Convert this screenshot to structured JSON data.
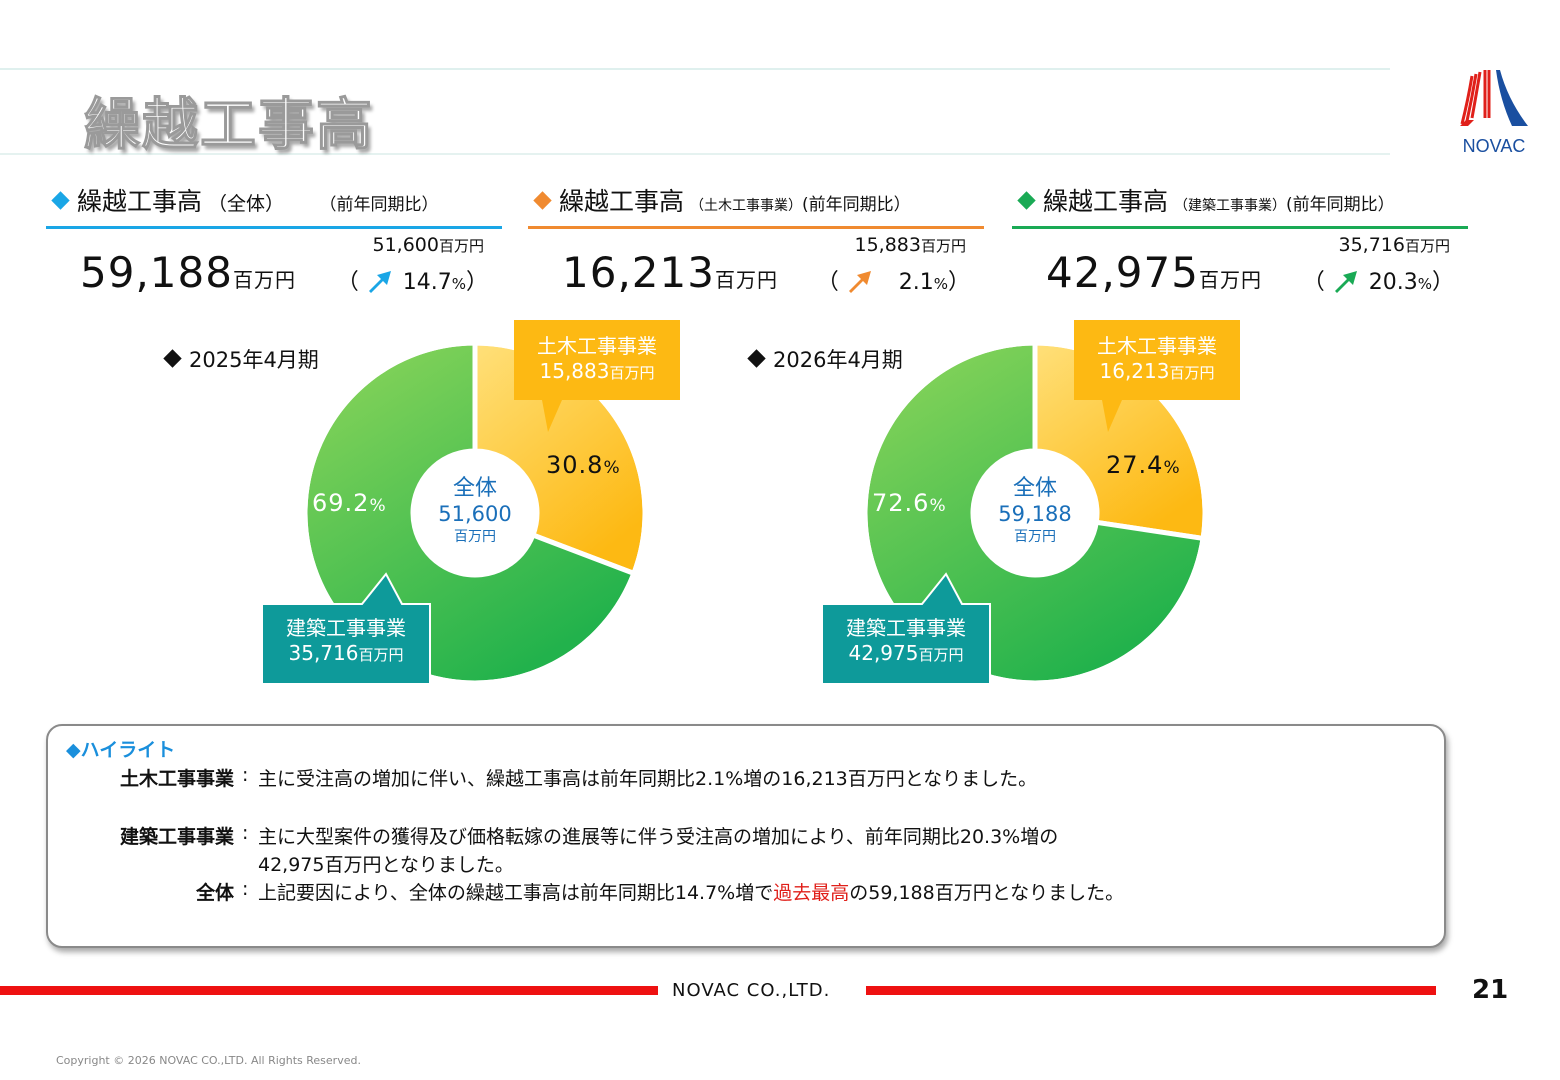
{
  "header": {
    "title": "繰越工事高"
  },
  "logo": {
    "text": "NOVAC",
    "colors": [
      "#e0201a",
      "#1a4fa0"
    ]
  },
  "panels": [
    {
      "id": "total",
      "title": "繰越工事高",
      "subtitle": "（全体）",
      "compare_label": "（前年同期比）",
      "accent": "#1aa6e6",
      "value": "59,188",
      "unit": "百万円",
      "prev_value": "51,600",
      "prev_unit": "百万円",
      "growth_open": "（",
      "growth": "14.7",
      "growth_unit": "%",
      "growth_close": "）",
      "arrow_color": "#1aa6e6"
    },
    {
      "id": "civil",
      "title": "繰越工事高",
      "subtitle": "（土木工事事業）",
      "compare_label": "(前年同期比）",
      "accent": "#f08a30",
      "value": "16,213",
      "unit": "百万円",
      "prev_value": "15,883",
      "prev_unit": "百万円",
      "growth_open": "（",
      "growth": "2.1",
      "growth_unit": "%",
      "growth_close": "）",
      "arrow_color": "#f08a30"
    },
    {
      "id": "building",
      "title": "繰越工事高",
      "subtitle": "（建築工事事業）",
      "compare_label": "(前年同期比）",
      "accent": "#1aaa55",
      "value": "42,975",
      "unit": "百万円",
      "prev_value": "35,716",
      "prev_unit": "百万円",
      "growth_open": "（",
      "growth": "20.3",
      "growth_unit": "%",
      "growth_close": "）",
      "arrow_color": "#1aaa55"
    }
  ],
  "chart_data": [
    {
      "type": "pie",
      "title": "2025年4月期",
      "center_label": "全体",
      "center_value": "51,600",
      "center_unit": "百万円",
      "categories": [
        "土木工事事業",
        "建築工事事業"
      ],
      "values": [
        15883,
        35716
      ],
      "percent_labels": [
        "30.8",
        "69.2"
      ],
      "value_labels": [
        "15,883",
        "35,716"
      ],
      "unit": "百万円",
      "pct_sign": "%",
      "colors": [
        "#fdb913",
        "#3cbc4c"
      ]
    },
    {
      "type": "pie",
      "title": "2026年4月期",
      "center_label": "全体",
      "center_value": "59,188",
      "center_unit": "百万円",
      "categories": [
        "土木工事事業",
        "建築工事事業"
      ],
      "values": [
        16213,
        42975
      ],
      "percent_labels": [
        "27.4",
        "72.6"
      ],
      "value_labels": [
        "16,213",
        "42,975"
      ],
      "unit": "百万円",
      "pct_sign": "%",
      "colors": [
        "#fdb913",
        "#3cbc4c"
      ]
    }
  ],
  "callout_colors": {
    "civil": "#fdb913",
    "building": "#0e9a9a"
  },
  "highlight": {
    "title": "◆ハイライト",
    "rows": [
      {
        "label": "土木工事事業",
        "colon": ":",
        "text": "主に受注高の増加に伴い、繰越工事高は前年同期比2.1%増の16,213百万円となりました。"
      },
      {
        "label": "建築工事事業",
        "colon": ":",
        "text": "主に大型案件の獲得及び価格転嫁の進展等に伴う受注高の増加により、前年同期比20.3%増の",
        "text2": "42,975百万円となりました。"
      },
      {
        "label": "全体",
        "colon": ":",
        "text_pre": "上記要因により、全体の繰越工事高は前年同期比14.7%増で",
        "text_red": "過去最高",
        "text_post": "の59,188百万円となりました。"
      }
    ]
  },
  "footer": {
    "company": "NOVAC CO.,LTD.",
    "page": "21",
    "copyright": "Copyright © 2026 NOVAC CO.,LTD. All Rights Reserved."
  }
}
